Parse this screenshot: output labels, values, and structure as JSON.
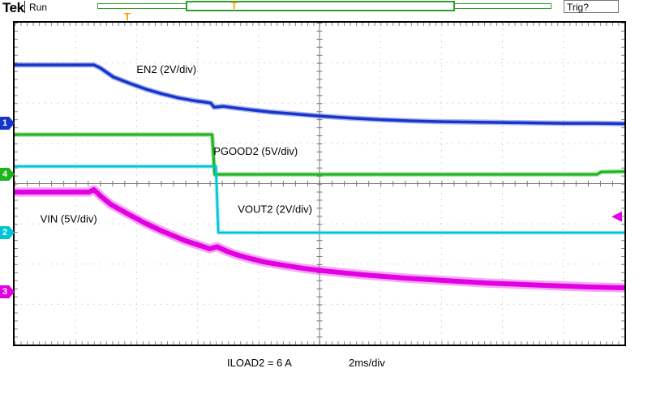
{
  "header": {
    "logo": "Tek",
    "status": "Run",
    "trig_status": "Trig?",
    "trigger_glyph": "T"
  },
  "footer": {
    "iload_label": "ILOAD2 = 6 A",
    "timebase": "2ms/div"
  },
  "colors": {
    "ch1": "#1535cc",
    "ch2": "#00c4d6",
    "ch3": "#e100e1",
    "ch4": "#1db41d",
    "trigger_orange": "#ff9b00",
    "grid": "#b5b5b5",
    "center_line": "#777777"
  },
  "channels": [
    {
      "num": "1",
      "name": "EN2",
      "scale": "2V/div",
      "color_key": "ch1",
      "marker_y_div": 2.5
    },
    {
      "num": "4",
      "name": "PGOOD2",
      "scale": "5V/div",
      "color_key": "ch4",
      "marker_y_div": 3.77
    },
    {
      "num": "2",
      "name": "VOUT2",
      "scale": "2V/div",
      "color_key": "ch2",
      "marker_y_div": 5.22
    },
    {
      "num": "3",
      "name": "VIN",
      "scale": "5V/div",
      "color_key": "ch3",
      "marker_y_div": 6.7
    }
  ],
  "chart_data": {
    "type": "line",
    "title": "Oscilloscope capture: EN2 / PGOOD2 / VOUT2 / VIN during VIN ramp-down",
    "x_per_div": "2 ms",
    "x_divisions": 10,
    "y_divisions": 8,
    "grid": true,
    "point_units": "graticule divisions, y measured from top of screen",
    "series": [
      {
        "name": "PGOOD2",
        "scale": "5V/div",
        "color_key": "ch4",
        "width": 3,
        "points": [
          [
            0,
            2.78
          ],
          [
            3.24,
            2.78
          ],
          [
            3.28,
            3.77
          ],
          [
            9.55,
            3.77
          ],
          [
            9.62,
            3.71
          ],
          [
            10,
            3.7
          ]
        ]
      },
      {
        "name": "VOUT2",
        "scale": "2V/div",
        "color_key": "ch2",
        "width": 2.5,
        "points": [
          [
            0,
            3.57
          ],
          [
            3.3,
            3.57
          ],
          [
            3.34,
            5.22
          ],
          [
            10,
            5.22
          ]
        ]
      },
      {
        "name": "EN2",
        "scale": "2V/div",
        "color_key": "ch1",
        "width": 3.5,
        "points": [
          [
            0,
            1.05
          ],
          [
            1.3,
            1.05
          ],
          [
            1.4,
            1.12
          ],
          [
            1.62,
            1.35
          ],
          [
            1.89,
            1.51
          ],
          [
            2.15,
            1.65
          ],
          [
            2.42,
            1.77
          ],
          [
            2.69,
            1.87
          ],
          [
            2.95,
            1.94
          ],
          [
            3.15,
            1.98
          ],
          [
            3.22,
            2.0
          ],
          [
            3.27,
            2.1
          ],
          [
            3.42,
            2.08
          ],
          [
            3.62,
            2.12
          ],
          [
            3.9,
            2.17
          ],
          [
            4.2,
            2.22
          ],
          [
            4.6,
            2.27
          ],
          [
            5.0,
            2.32
          ],
          [
            5.5,
            2.37
          ],
          [
            6.0,
            2.41
          ],
          [
            6.5,
            2.44
          ],
          [
            7.0,
            2.46
          ],
          [
            7.5,
            2.47
          ],
          [
            8.0,
            2.48
          ],
          [
            8.5,
            2.49
          ],
          [
            9.0,
            2.5
          ],
          [
            9.5,
            2.5
          ],
          [
            10,
            2.51
          ]
        ]
      },
      {
        "name": "VIN",
        "scale": "5V/div",
        "color_key": "ch3",
        "width": 6,
        "points": [
          [
            0,
            4.21
          ],
          [
            1.22,
            4.21
          ],
          [
            1.3,
            4.15
          ],
          [
            1.42,
            4.32
          ],
          [
            1.58,
            4.52
          ],
          [
            1.89,
            4.78
          ],
          [
            2.15,
            4.99
          ],
          [
            2.42,
            5.18
          ],
          [
            2.8,
            5.42
          ],
          [
            3.08,
            5.56
          ],
          [
            3.2,
            5.62
          ],
          [
            3.32,
            5.57
          ],
          [
            3.48,
            5.68
          ],
          [
            3.62,
            5.76
          ],
          [
            3.78,
            5.83
          ],
          [
            4.1,
            5.95
          ],
          [
            4.41,
            6.03
          ],
          [
            4.75,
            6.11
          ],
          [
            5.08,
            6.17
          ],
          [
            5.41,
            6.22
          ],
          [
            5.74,
            6.27
          ],
          [
            6.08,
            6.31
          ],
          [
            6.41,
            6.35
          ],
          [
            6.74,
            6.38
          ],
          [
            7.07,
            6.41
          ],
          [
            7.4,
            6.44
          ],
          [
            7.74,
            6.47
          ],
          [
            8.07,
            6.49
          ],
          [
            8.4,
            6.51
          ],
          [
            8.73,
            6.53
          ],
          [
            9.07,
            6.55
          ],
          [
            9.4,
            6.57
          ],
          [
            10,
            6.59
          ]
        ]
      }
    ],
    "annotations": [
      {
        "text": "EN2 (2V/div)",
        "x_div": 2.0,
        "y_div": 1.25
      },
      {
        "text": "PGOOD2 (5V/div)",
        "x_div": 3.26,
        "y_div": 3.28
      },
      {
        "text": "VOUT2 (2V/div)",
        "x_div": 3.66,
        "y_div": 4.73
      },
      {
        "text": "VIN (5V/div)",
        "x_div": 0.42,
        "y_div": 4.97
      }
    ],
    "trigger_time_marker_x_div": 1.85,
    "trigger_level_marker": {
      "y_div": 4.82,
      "color_key": "ch3"
    }
  }
}
